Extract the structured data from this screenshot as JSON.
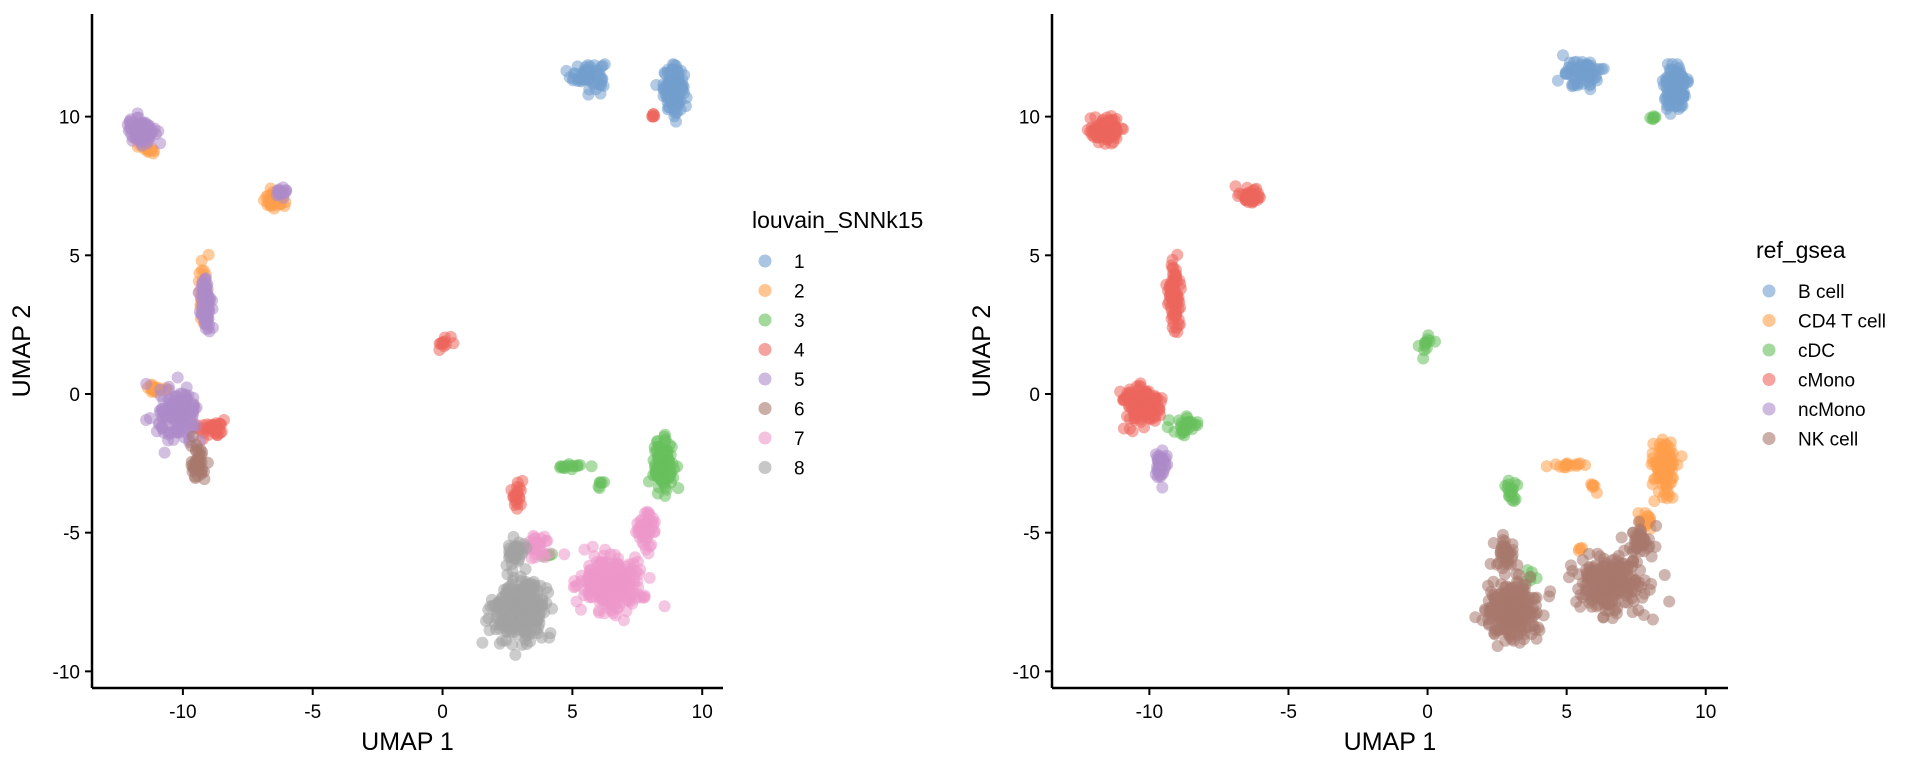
{
  "chart_data": [
    {
      "type": "scatter",
      "xlabel": "UMAP 1",
      "ylabel": "UMAP 2",
      "xlim": [
        -13.5,
        10.8
      ],
      "ylim": [
        -10.6,
        13.7
      ],
      "x_ticks": [
        "-10",
        "-5",
        "0",
        "5",
        "10"
      ],
      "y_ticks": [
        "-10",
        "-5",
        "0",
        "5",
        "10"
      ],
      "grid": false,
      "legend_placement": "right",
      "legend_title": "louvain_SNNk15",
      "series": [
        {
          "name": "1",
          "color": "#729ECE",
          "clusters": [
            {
              "x": 5.6,
              "y": 11.5,
              "sx": 0.6,
              "sy": 0.45,
              "n": 70
            },
            {
              "x": 8.9,
              "y": 11.0,
              "sx": 0.35,
              "sy": 0.7,
              "n": 140
            }
          ]
        },
        {
          "name": "2",
          "color": "#FF9E4A",
          "clusters": [
            {
              "x": -6.5,
              "y": 7.0,
              "sx": 0.4,
              "sy": 0.25,
              "n": 40
            },
            {
              "x": -9.2,
              "y": 3.6,
              "sx": 0.2,
              "sy": 1.2,
              "n": 30
            },
            {
              "x": -11.0,
              "y": 0.2,
              "sx": 0.3,
              "sy": 0.15,
              "n": 20
            },
            {
              "x": -11.4,
              "y": 8.9,
              "sx": 0.4,
              "sy": 0.2,
              "n": 15
            }
          ]
        },
        {
          "name": "3",
          "color": "#67BF5C",
          "clusters": [
            {
              "x": 8.5,
              "y": -2.6,
              "sx": 0.35,
              "sy": 0.8,
              "n": 120
            },
            {
              "x": 5.0,
              "y": -2.6,
              "sx": 0.5,
              "sy": 0.1,
              "n": 15
            },
            {
              "x": 6.0,
              "y": -3.3,
              "sx": 0.15,
              "sy": 0.2,
              "n": 6
            },
            {
              "x": 4.0,
              "y": -5.8,
              "sx": 0.3,
              "sy": 0.1,
              "n": 5
            }
          ]
        },
        {
          "name": "4",
          "color": "#ED665D",
          "clusters": [
            {
              "x": 0.0,
              "y": 1.8,
              "sx": 0.3,
              "sy": 0.35,
              "n": 12
            },
            {
              "x": 2.9,
              "y": -3.6,
              "sx": 0.25,
              "sy": 0.5,
              "n": 20
            },
            {
              "x": -8.9,
              "y": -1.2,
              "sx": 0.5,
              "sy": 0.35,
              "n": 35
            },
            {
              "x": 8.1,
              "y": 10.0,
              "sx": 0.1,
              "sy": 0.1,
              "n": 6
            }
          ]
        },
        {
          "name": "5",
          "color": "#AD8BC9",
          "clusters": [
            {
              "x": -11.6,
              "y": 9.5,
              "sx": 0.45,
              "sy": 0.4,
              "n": 110
            },
            {
              "x": -6.2,
              "y": 7.3,
              "sx": 0.3,
              "sy": 0.2,
              "n": 15
            },
            {
              "x": -9.1,
              "y": 3.2,
              "sx": 0.25,
              "sy": 1.1,
              "n": 60
            },
            {
              "x": -10.2,
              "y": -0.8,
              "sx": 0.7,
              "sy": 0.8,
              "n": 160
            }
          ]
        },
        {
          "name": "6",
          "color": "#A8786E",
          "clusters": [
            {
              "x": -9.4,
              "y": -2.5,
              "sx": 0.25,
              "sy": 0.6,
              "n": 45
            }
          ]
        },
        {
          "name": "7",
          "color": "#ED97CA",
          "clusters": [
            {
              "x": 6.5,
              "y": -6.8,
              "sx": 1.1,
              "sy": 0.9,
              "n": 260
            },
            {
              "x": 7.8,
              "y": -5.0,
              "sx": 0.4,
              "sy": 0.6,
              "n": 50
            },
            {
              "x": 3.7,
              "y": -5.4,
              "sx": 0.5,
              "sy": 0.5,
              "n": 30
            }
          ]
        },
        {
          "name": "8",
          "color": "#A2A2A2",
          "clusters": [
            {
              "x": 3.0,
              "y": -7.8,
              "sx": 0.9,
              "sy": 0.9,
              "n": 300
            },
            {
              "x": 2.8,
              "y": -5.8,
              "sx": 0.3,
              "sy": 0.5,
              "n": 40
            }
          ]
        }
      ]
    },
    {
      "type": "scatter",
      "xlabel": "UMAP 1",
      "ylabel": "UMAP 2",
      "xlim": [
        -13.5,
        10.8
      ],
      "ylim": [
        -10.6,
        13.7
      ],
      "x_ticks": [
        "-10",
        "-5",
        "0",
        "5",
        "10"
      ],
      "y_ticks": [
        "-10",
        "-5",
        "0",
        "5",
        "10"
      ],
      "grid": false,
      "legend_placement": "right",
      "legend_title": "ref_gsea",
      "series": [
        {
          "name": "B cell",
          "color": "#729ECE",
          "clusters": [
            {
              "x": 5.6,
              "y": 11.5,
              "sx": 0.6,
              "sy": 0.45,
              "n": 70
            },
            {
              "x": 8.9,
              "y": 11.0,
              "sx": 0.35,
              "sy": 0.7,
              "n": 140
            }
          ]
        },
        {
          "name": "CD4 T cell",
          "color": "#FF9E4A",
          "clusters": [
            {
              "x": 8.5,
              "y": -2.6,
              "sx": 0.35,
              "sy": 0.8,
              "n": 120
            },
            {
              "x": 5.0,
              "y": -2.6,
              "sx": 0.5,
              "sy": 0.1,
              "n": 15
            },
            {
              "x": 6.0,
              "y": -3.3,
              "sx": 0.15,
              "sy": 0.2,
              "n": 6
            },
            {
              "x": 7.9,
              "y": -4.6,
              "sx": 0.3,
              "sy": 0.4,
              "n": 15
            },
            {
              "x": 5.5,
              "y": -5.6,
              "sx": 0.1,
              "sy": 0.1,
              "n": 4
            }
          ]
        },
        {
          "name": "cDC",
          "color": "#67BF5C",
          "clusters": [
            {
              "x": 0.0,
              "y": 1.8,
              "sx": 0.3,
              "sy": 0.35,
              "n": 12
            },
            {
              "x": 8.1,
              "y": 10.0,
              "sx": 0.1,
              "sy": 0.1,
              "n": 6
            },
            {
              "x": 3.0,
              "y": -3.6,
              "sx": 0.2,
              "sy": 0.5,
              "n": 18
            },
            {
              "x": -8.7,
              "y": -1.2,
              "sx": 0.4,
              "sy": 0.35,
              "n": 30
            },
            {
              "x": 3.6,
              "y": -6.5,
              "sx": 0.25,
              "sy": 0.3,
              "n": 6
            }
          ]
        },
        {
          "name": "cMono",
          "color": "#ED665D",
          "clusters": [
            {
              "x": -11.6,
              "y": 9.5,
              "sx": 0.45,
              "sy": 0.4,
              "n": 125
            },
            {
              "x": -6.4,
              "y": 7.1,
              "sx": 0.35,
              "sy": 0.25,
              "n": 45
            },
            {
              "x": -9.1,
              "y": 3.4,
              "sx": 0.22,
              "sy": 1.2,
              "n": 80
            },
            {
              "x": -10.3,
              "y": -0.4,
              "sx": 0.65,
              "sy": 0.6,
              "n": 140
            }
          ]
        },
        {
          "name": "ncMono",
          "color": "#AD8BC9",
          "clusters": [
            {
              "x": -9.6,
              "y": -2.6,
              "sx": 0.25,
              "sy": 0.5,
              "n": 40
            }
          ]
        },
        {
          "name": "NK cell",
          "color": "#A8786E",
          "clusters": [
            {
              "x": 3.0,
              "y": -7.8,
              "sx": 0.9,
              "sy": 0.9,
              "n": 300
            },
            {
              "x": 6.5,
              "y": -6.8,
              "sx": 1.1,
              "sy": 0.9,
              "n": 260
            },
            {
              "x": 7.7,
              "y": -5.2,
              "sx": 0.4,
              "sy": 0.5,
              "n": 40
            },
            {
              "x": 2.8,
              "y": -5.8,
              "sx": 0.3,
              "sy": 0.5,
              "n": 40
            }
          ]
        }
      ]
    }
  ]
}
